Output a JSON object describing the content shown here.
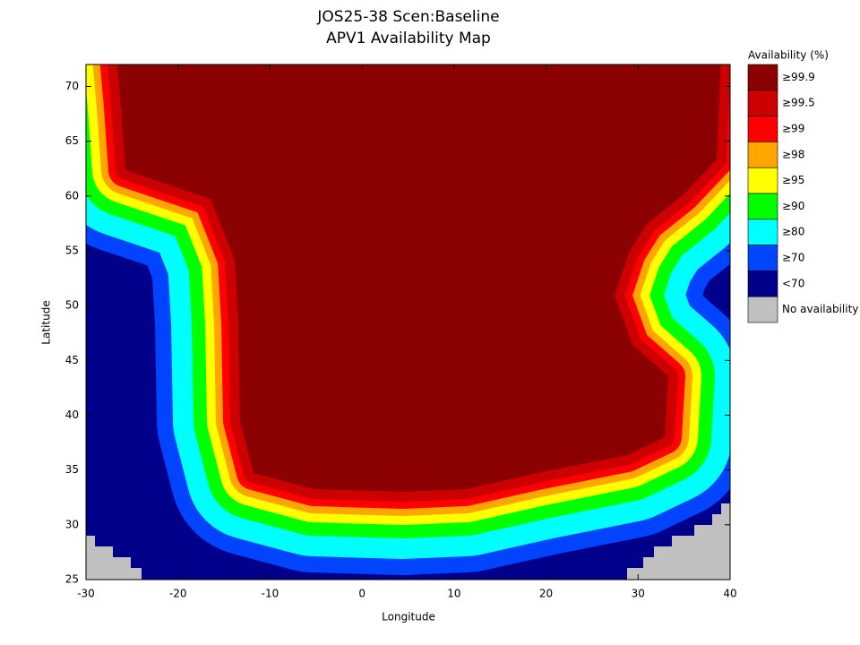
{
  "chart_data": {
    "type": "heatmap",
    "title": "JOS25-38 Scen:Baseline",
    "subtitle": "APV1 Availability Map",
    "xlabel": "Longitude",
    "ylabel": "Latitude",
    "xlim": [
      -30,
      40
    ],
    "xticks": [
      -30,
      -20,
      -10,
      0,
      10,
      20,
      30,
      40
    ],
    "ylim": [
      25,
      72
    ],
    "yticks": [
      25,
      30,
      35,
      40,
      45,
      50,
      55,
      60,
      65,
      70
    ],
    "legend": {
      "title": "Availability (%)",
      "entries": [
        {
          "label": "≥99.9",
          "color": "#8b0000"
        },
        {
          "label": "≥99.5",
          "color": "#cc0000"
        },
        {
          "label": "≥99",
          "color": "#ff0000"
        },
        {
          "label": "≥98",
          "color": "#ffa500"
        },
        {
          "label": "≥95",
          "color": "#ffff00"
        },
        {
          "label": "≥90",
          "color": "#00ff00"
        },
        {
          "label": "≥80",
          "color": "#00ffff"
        },
        {
          "label": "≥70",
          "color": "#0044ff"
        },
        {
          "label": "<70",
          "color": "#00008b"
        },
        {
          "label": "No availability",
          "color": "#c0c0c0"
        }
      ]
    }
  }
}
